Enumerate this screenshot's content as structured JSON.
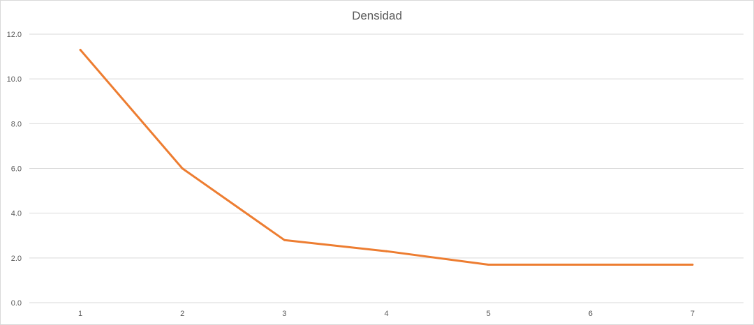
{
  "chart_data": {
    "type": "line",
    "title": "Densidad",
    "xlabel": "",
    "ylabel": "",
    "categories": [
      "1",
      "2",
      "3",
      "4",
      "5",
      "6",
      "7"
    ],
    "series": [
      {
        "values": [
          11.3,
          6.0,
          2.8,
          2.3,
          1.7,
          1.7,
          1.7
        ],
        "color": "#ed7d31"
      }
    ],
    "ylim": [
      0,
      12
    ],
    "yticks": [
      "0.0",
      "2.0",
      "4.0",
      "6.0",
      "8.0",
      "10.0",
      "12.0"
    ],
    "grid": true,
    "legend": "none"
  }
}
